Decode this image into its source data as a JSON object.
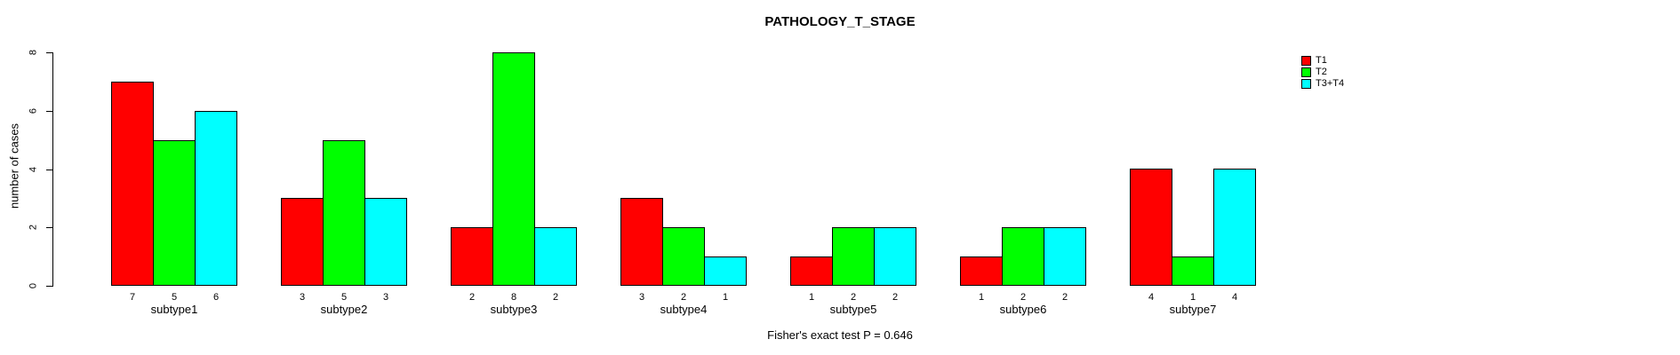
{
  "chart_data": {
    "type": "bar",
    "title": "PATHOLOGY_T_STAGE",
    "ylabel": "number of cases",
    "caption": "Fisher's exact test P = 0.646",
    "categories": [
      "subtype1",
      "subtype2",
      "subtype3",
      "subtype4",
      "subtype5",
      "subtype6",
      "subtype7"
    ],
    "series": [
      {
        "name": "T1",
        "color": "#ff0000",
        "values": [
          7,
          3,
          2,
          3,
          1,
          1,
          4
        ]
      },
      {
        "name": "T2",
        "color": "#00ff00",
        "values": [
          5,
          5,
          8,
          2,
          2,
          2,
          1
        ]
      },
      {
        "name": "T3+T4",
        "color": "#00ffff",
        "values": [
          6,
          3,
          2,
          1,
          2,
          2,
          4
        ]
      }
    ],
    "bar_value_labels_shown": true,
    "ylim": [
      0,
      8
    ],
    "yticks": [
      0,
      2,
      4,
      6,
      8
    ],
    "grid": false,
    "legend_position": "top-right",
    "bar_border_color": "#000000",
    "background_color": "#ffffff",
    "text_color": "#000000"
  }
}
